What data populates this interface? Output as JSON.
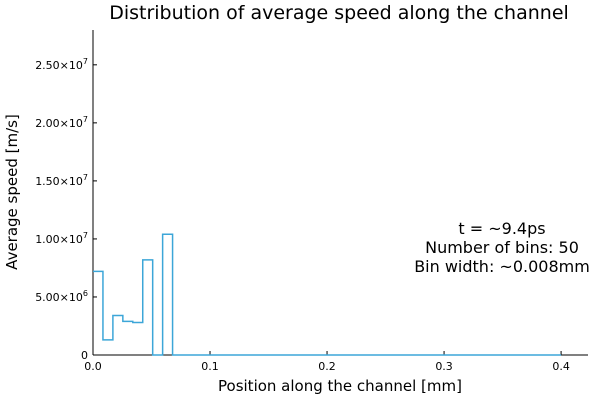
{
  "chart_data": {
    "type": "line",
    "title": "Distribution of average speed along the channel",
    "xlabel": "Position along the channel [mm]",
    "ylabel": "Average speed [m/s]",
    "xlim": [
      0,
      0.423
    ],
    "ylim": [
      0,
      28000000
    ],
    "grid": false,
    "legend": "none",
    "x_ticks": [
      {
        "value": 0.0,
        "label": "0.0"
      },
      {
        "value": 0.1,
        "label": "0.1"
      },
      {
        "value": 0.2,
        "label": "0.2"
      },
      {
        "value": 0.3,
        "label": "0.3"
      },
      {
        "value": 0.4,
        "label": "0.4"
      }
    ],
    "y_ticks": [
      {
        "value": 0,
        "mantissa": "0",
        "exponent": ""
      },
      {
        "value": 5000000,
        "mantissa": "5.00×10",
        "exponent": "6"
      },
      {
        "value": 10000000,
        "mantissa": "1.00×10",
        "exponent": "7"
      },
      {
        "value": 15000000,
        "mantissa": "1.50×10",
        "exponent": "7"
      },
      {
        "value": 20000000,
        "mantissa": "2.00×10",
        "exponent": "7"
      },
      {
        "value": 25000000,
        "mantissa": "2.50×10",
        "exponent": "7"
      }
    ],
    "series": [
      {
        "color": "#3ca6d8",
        "bin_edges": [
          0.0,
          0.0085,
          0.017,
          0.0255,
          0.034,
          0.0425,
          0.051,
          0.0595,
          0.068
        ],
        "values": [
          7200000,
          1300000,
          3400000,
          2900000,
          2800000,
          8200000,
          0,
          10400000,
          0
        ],
        "x_end": 0.4
      }
    ],
    "annotation": [
      "t = ~9.4ps",
      "Number of bins: 50",
      "Bin width: ~0.008mm"
    ]
  }
}
